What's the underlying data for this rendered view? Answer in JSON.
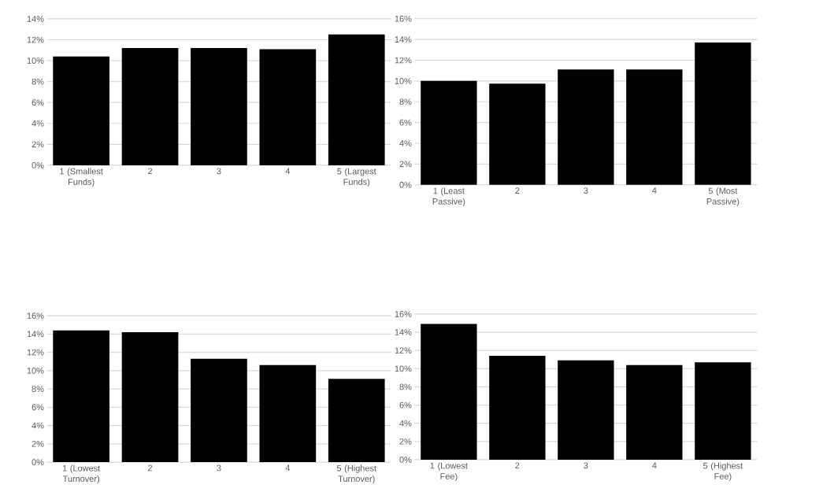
{
  "chart_data": [
    {
      "type": "bar",
      "categories": [
        "1 (Smallest Funds)",
        "2",
        "3",
        "4",
        "5 (Largest Funds)"
      ],
      "values": [
        10.4,
        11.2,
        11.2,
        11.1,
        12.5
      ],
      "color": "#000000",
      "ylim": [
        0,
        14
      ],
      "yticks": [
        {
          "value": 0,
          "label": "0%"
        },
        {
          "value": 2,
          "label": "2%"
        },
        {
          "value": 4,
          "label": "4%"
        },
        {
          "value": 6,
          "label": "6%"
        },
        {
          "value": 8,
          "label": "8%"
        },
        {
          "value": 10,
          "label": "10%"
        },
        {
          "value": 12,
          "label": "12%"
        },
        {
          "value": 14,
          "label": "14%"
        }
      ],
      "grid": "y"
    },
    {
      "type": "bar",
      "categories": [
        "1 (Least Passive)",
        "2",
        "3",
        "4",
        "5 (Most Passive)"
      ],
      "values": [
        10.0,
        9.75,
        11.1,
        11.1,
        13.7
      ],
      "color": "#000000",
      "ylim": [
        0,
        16
      ],
      "yticks": [
        {
          "value": 0,
          "label": "0%"
        },
        {
          "value": 2,
          "label": "2%"
        },
        {
          "value": 4,
          "label": "4%"
        },
        {
          "value": 6,
          "label": "6%"
        },
        {
          "value": 8,
          "label": "8%"
        },
        {
          "value": 10,
          "label": "10%"
        },
        {
          "value": 12,
          "label": "12%"
        },
        {
          "value": 14,
          "label": "14%"
        },
        {
          "value": 16,
          "label": "16%"
        }
      ],
      "grid": "y"
    },
    {
      "type": "bar",
      "categories": [
        "1 (Lowest Turnover)",
        "2",
        "3",
        "4",
        "5 (Highest Turnover)"
      ],
      "values": [
        14.4,
        14.2,
        11.3,
        10.6,
        9.1
      ],
      "color": "#000000",
      "ylim": [
        0,
        16
      ],
      "yticks": [
        {
          "value": 0,
          "label": "0%"
        },
        {
          "value": 2,
          "label": "2%"
        },
        {
          "value": 4,
          "label": "4%"
        },
        {
          "value": 6,
          "label": "6%"
        },
        {
          "value": 8,
          "label": "8%"
        },
        {
          "value": 10,
          "label": "10%"
        },
        {
          "value": 12,
          "label": "12%"
        },
        {
          "value": 14,
          "label": "14%"
        },
        {
          "value": 16,
          "label": "16%"
        }
      ],
      "grid": "y"
    },
    {
      "type": "bar",
      "categories": [
        "1 (Lowest Fee)",
        "2",
        "3",
        "4",
        "5 (Highest Fee)"
      ],
      "values": [
        14.9,
        11.4,
        10.9,
        10.4,
        10.7
      ],
      "color": "#000000",
      "ylim": [
        0,
        16
      ],
      "yticks": [
        {
          "value": 0,
          "label": "0%"
        },
        {
          "value": 2,
          "label": "2%"
        },
        {
          "value": 4,
          "label": "4%"
        },
        {
          "value": 6,
          "label": "6%"
        },
        {
          "value": 8,
          "label": "8%"
        },
        {
          "value": 10,
          "label": "10%"
        },
        {
          "value": 12,
          "label": "12%"
        },
        {
          "value": 14,
          "label": "14%"
        },
        {
          "value": 16,
          "label": "16%"
        }
      ],
      "grid": "y"
    }
  ]
}
